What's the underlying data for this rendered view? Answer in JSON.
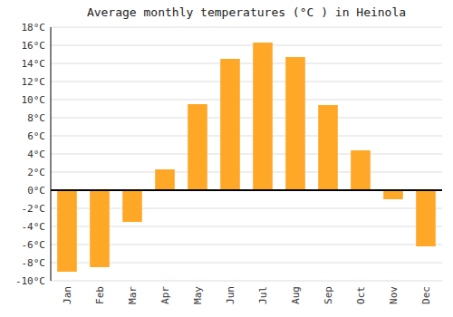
{
  "chart_data": {
    "type": "bar",
    "title": "Average monthly temperatures (°C ) in Heinola",
    "categories": [
      "Jan",
      "Feb",
      "Mar",
      "Apr",
      "May",
      "Jun",
      "Jul",
      "Aug",
      "Sep",
      "Oct",
      "Nov",
      "Dec"
    ],
    "values": [
      -9.0,
      -8.5,
      -3.5,
      2.3,
      9.5,
      14.5,
      16.3,
      14.7,
      9.4,
      4.4,
      -1.0,
      -6.2
    ],
    "color": "#FFA726",
    "ylim": [
      -10,
      18
    ],
    "yticks": [
      {
        "value": -10,
        "label": "-10°C"
      },
      {
        "value": -8,
        "label": "-8°C"
      },
      {
        "value": -6,
        "label": "-6°C"
      },
      {
        "value": -4,
        "label": "-4°C"
      },
      {
        "value": -2,
        "label": "-2°C"
      },
      {
        "value": 0,
        "label": "0°C"
      },
      {
        "value": 2,
        "label": "2°C"
      },
      {
        "value": 4,
        "label": "4°C"
      },
      {
        "value": 6,
        "label": "6°C"
      },
      {
        "value": 8,
        "label": "8°C"
      },
      {
        "value": 10,
        "label": "10°C"
      },
      {
        "value": 12,
        "label": "12°C"
      },
      {
        "value": 14,
        "label": "14°C"
      },
      {
        "value": 16,
        "label": "16°C"
      },
      {
        "value": 18,
        "label": "18°C"
      }
    ],
    "grid": true
  }
}
